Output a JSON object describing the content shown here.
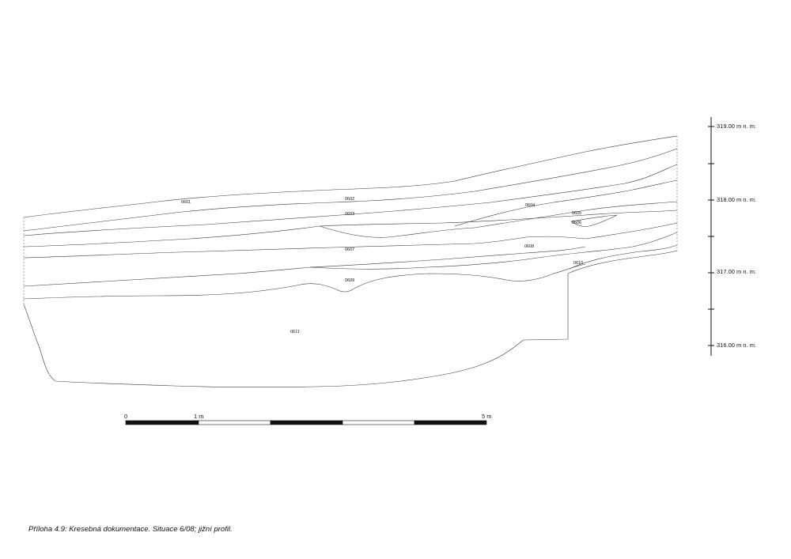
{
  "layers": [
    {
      "id": "0601",
      "label": "0601"
    },
    {
      "id": "0602",
      "label": "0602"
    },
    {
      "id": "0603",
      "label": "0603"
    },
    {
      "id": "0604",
      "label": "0604"
    },
    {
      "id": "0605",
      "label": "0605"
    },
    {
      "id": "0606",
      "label": "0606"
    },
    {
      "id": "0607",
      "label": "0607"
    },
    {
      "id": "0608",
      "label": "0608"
    },
    {
      "id": "0609",
      "label": "0609"
    },
    {
      "id": "0610",
      "label": "0610"
    },
    {
      "id": "0611",
      "label": "0611"
    }
  ],
  "elevation_scale": {
    "labels": [
      "319.00 m n. m.",
      "318.00 m n. m.",
      "317.00 m n. m.",
      "316.00 m n. m."
    ]
  },
  "scale_bar": {
    "labels": [
      "0",
      "1 m",
      "5 m"
    ]
  },
  "caption": "Příloha 4.9: Kresebná dokumentace. Situace 6/08; jižní profil."
}
